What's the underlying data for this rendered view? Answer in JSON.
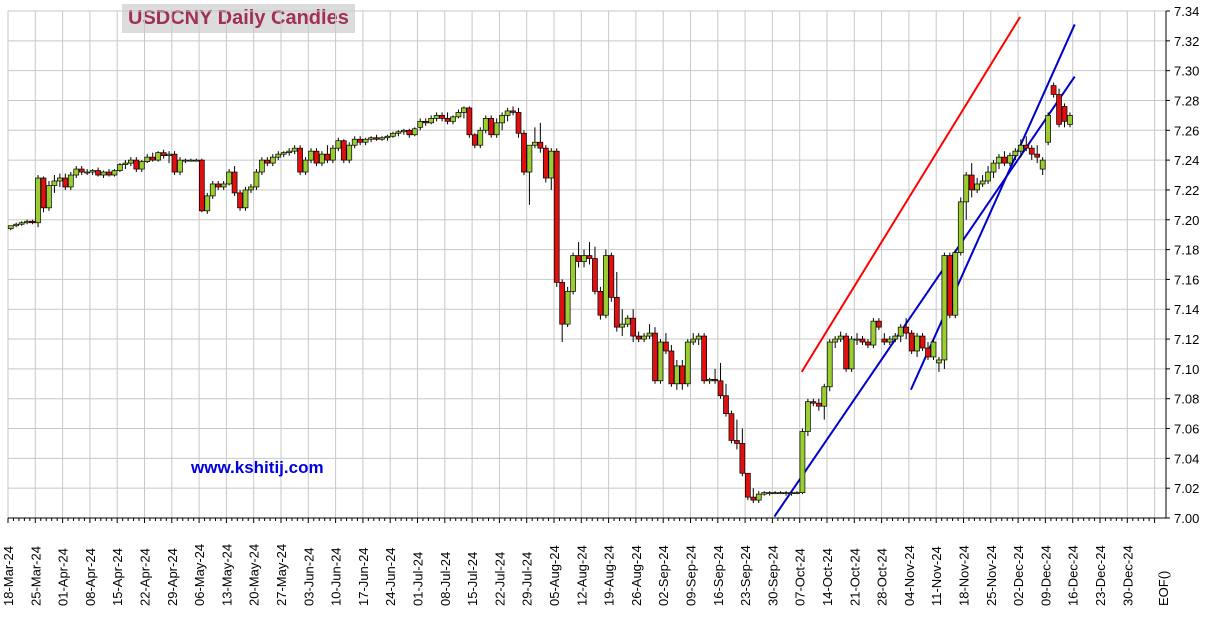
{
  "chart_data": {
    "type": "candlestick",
    "title": "USDCNY Daily Candles",
    "watermark": "www.kshitij.com",
    "ylim": [
      7.0,
      7.34
    ],
    "y_ticks": [
      "7.00",
      "7.02",
      "7.04",
      "7.06",
      "7.08",
      "7.10",
      "7.12",
      "7.14",
      "7.16",
      "7.18",
      "7.20",
      "7.22",
      "7.24",
      "7.26",
      "7.28",
      "7.30",
      "7.32",
      "7.34"
    ],
    "x_ticks": [
      "18-Mar-24",
      "25-Mar-24",
      "01-Apr-24",
      "08-Apr-24",
      "15-Apr-24",
      "22-Apr-24",
      "29-Apr-24",
      "06-May-24",
      "13-May-24",
      "20-May-24",
      "27-May-24",
      "03-Jun-24",
      "10-Jun-24",
      "17-Jun-24",
      "24-Jun-24",
      "01-Jul-24",
      "08-Jul-24",
      "15-Jul-24",
      "22-Jul-24",
      "29-Jul-24",
      "05-Aug-24",
      "12-Aug-24",
      "19-Aug-24",
      "26-Aug-24",
      "02-Sep-24",
      "09-Sep-24",
      "16-Sep-24",
      "23-Sep-24",
      "30-Sep-24",
      "07-Oct-24",
      "14-Oct-24",
      "21-Oct-24",
      "28-Oct-24",
      "04-Nov-24",
      "11-Nov-24",
      "18-Nov-24",
      "25-Nov-24",
      "02-Dec-24",
      "09-Dec-24",
      "16-Dec-24",
      "23-Dec-24",
      "30-Dec-24",
      "EOF()"
    ],
    "grid": true,
    "up_color": "#9acd32",
    "down_color": "#e01010",
    "weeks": [
      [
        [
          7.194,
          7.196,
          7.193,
          7.196
        ],
        [
          7.196,
          7.198,
          7.195,
          7.197
        ],
        [
          7.197,
          7.199,
          7.196,
          7.198
        ],
        [
          7.198,
          7.2,
          7.197,
          7.199
        ],
        [
          7.199,
          7.2,
          7.197,
          7.198
        ]
      ],
      [
        [
          7.198,
          7.23,
          7.195,
          7.228
        ],
        [
          7.228,
          7.229,
          7.205,
          7.208
        ],
        [
          7.208,
          7.226,
          7.206,
          7.223
        ],
        [
          7.223,
          7.23,
          7.218,
          7.226
        ],
        [
          7.226,
          7.231,
          7.222,
          7.228
        ]
      ],
      [
        [
          7.228,
          7.231,
          7.22,
          7.222
        ],
        [
          7.222,
          7.232,
          7.22,
          7.23
        ],
        [
          7.23,
          7.236,
          7.228,
          7.234
        ],
        [
          7.234,
          7.236,
          7.23,
          7.232
        ],
        [
          7.232,
          7.234,
          7.23,
          7.232
        ]
      ],
      [
        [
          7.232,
          7.234,
          7.23,
          7.233
        ],
        [
          7.233,
          7.235,
          7.229,
          7.23
        ],
        [
          7.23,
          7.233,
          7.228,
          7.232
        ],
        [
          7.232,
          7.234,
          7.229,
          7.23
        ],
        [
          7.23,
          7.234,
          7.229,
          7.233
        ]
      ],
      [
        [
          7.233,
          7.238,
          7.232,
          7.237
        ],
        [
          7.237,
          7.24,
          7.234,
          7.238
        ],
        [
          7.238,
          7.242,
          7.236,
          7.24
        ],
        [
          7.24,
          7.242,
          7.232,
          7.234
        ],
        [
          7.234,
          7.24,
          7.232,
          7.239
        ]
      ],
      [
        [
          7.239,
          7.244,
          7.238,
          7.242
        ],
        [
          7.242,
          7.245,
          7.239,
          7.24
        ],
        [
          7.24,
          7.246,
          7.239,
          7.245
        ],
        [
          7.245,
          7.247,
          7.241,
          7.243
        ],
        [
          7.243,
          7.246,
          7.238,
          7.244
        ]
      ],
      [
        [
          7.244,
          7.246,
          7.23,
          7.232
        ],
        [
          7.232,
          7.242,
          7.23,
          7.24
        ],
        [
          7.24,
          7.241,
          7.238,
          7.24
        ],
        [
          7.24,
          7.241,
          7.239,
          7.24
        ],
        [
          7.24,
          7.241,
          7.239,
          7.24
        ]
      ],
      [
        [
          7.24,
          7.241,
          7.205,
          7.206
        ],
        [
          7.206,
          7.218,
          7.204,
          7.216
        ],
        [
          7.216,
          7.226,
          7.214,
          7.224
        ],
        [
          7.224,
          7.226,
          7.22,
          7.222
        ],
        [
          7.222,
          7.226,
          7.22,
          7.224
        ]
      ],
      [
        [
          7.224,
          7.234,
          7.223,
          7.232
        ],
        [
          7.232,
          7.236,
          7.216,
          7.218
        ],
        [
          7.218,
          7.22,
          7.206,
          7.208
        ],
        [
          7.208,
          7.222,
          7.206,
          7.22
        ],
        [
          7.22,
          7.224,
          7.218,
          7.222
        ]
      ],
      [
        [
          7.222,
          7.234,
          7.22,
          7.232
        ],
        [
          7.232,
          7.242,
          7.23,
          7.24
        ],
        [
          7.24,
          7.242,
          7.236,
          7.238
        ],
        [
          7.238,
          7.244,
          7.236,
          7.242
        ],
        [
          7.242,
          7.246,
          7.24,
          7.244
        ]
      ],
      [
        [
          7.244,
          7.246,
          7.242,
          7.245
        ],
        [
          7.245,
          7.248,
          7.243,
          7.246
        ],
        [
          7.246,
          7.25,
          7.244,
          7.248
        ],
        [
          7.248,
          7.25,
          7.23,
          7.232
        ],
        [
          7.232,
          7.242,
          7.23,
          7.24
        ]
      ],
      [
        [
          7.24,
          7.248,
          7.238,
          7.246
        ],
        [
          7.246,
          7.248,
          7.236,
          7.238
        ],
        [
          7.238,
          7.246,
          7.236,
          7.244
        ],
        [
          7.244,
          7.25,
          7.238,
          7.24
        ],
        [
          7.24,
          7.25,
          7.238,
          7.248
        ]
      ],
      [
        [
          7.248,
          7.255,
          7.246,
          7.253
        ],
        [
          7.253,
          7.254,
          7.238,
          7.24
        ],
        [
          7.24,
          7.252,
          7.238,
          7.25
        ],
        [
          7.25,
          7.256,
          7.248,
          7.254
        ],
        [
          7.254,
          7.256,
          7.25,
          7.252
        ]
      ],
      [
        [
          7.252,
          7.255,
          7.25,
          7.254
        ],
        [
          7.254,
          7.256,
          7.252,
          7.255
        ],
        [
          7.255,
          7.257,
          7.253,
          7.254
        ],
        [
          7.254,
          7.256,
          7.253,
          7.255
        ],
        [
          7.255,
          7.257,
          7.253,
          7.256
        ]
      ],
      [
        [
          7.256,
          7.259,
          7.255,
          7.258
        ],
        [
          7.258,
          7.26,
          7.256,
          7.259
        ],
        [
          7.259,
          7.261,
          7.257,
          7.26
        ],
        [
          7.26,
          7.261,
          7.255,
          7.257
        ],
        [
          7.257,
          7.262,
          7.256,
          7.261
        ]
      ],
      [
        [
          7.262,
          7.268,
          7.26,
          7.266
        ],
        [
          7.266,
          7.268,
          7.263,
          7.265
        ],
        [
          7.265,
          7.27,
          7.264,
          7.268
        ],
        [
          7.268,
          7.272,
          7.266,
          7.27
        ],
        [
          7.27,
          7.272,
          7.266,
          7.268
        ]
      ],
      [
        [
          7.268,
          7.272,
          7.264,
          7.266
        ],
        [
          7.266,
          7.27,
          7.264,
          7.269
        ],
        [
          7.269,
          7.274,
          7.268,
          7.272
        ],
        [
          7.272,
          7.276,
          7.268,
          7.275
        ],
        [
          7.275,
          7.276,
          7.255,
          7.257
        ]
      ],
      [
        [
          7.257,
          7.258,
          7.248,
          7.25
        ],
        [
          7.25,
          7.262,
          7.248,
          7.26
        ],
        [
          7.26,
          7.27,
          7.258,
          7.268
        ],
        [
          7.268,
          7.27,
          7.255,
          7.257
        ],
        [
          7.257,
          7.268,
          7.255,
          7.265
        ]
      ],
      [
        [
          7.265,
          7.272,
          7.26,
          7.27
        ],
        [
          7.27,
          7.275,
          7.266,
          7.273
        ],
        [
          7.273,
          7.276,
          7.27,
          7.272
        ],
        [
          7.272,
          7.275,
          7.255,
          7.258
        ],
        [
          7.258,
          7.26,
          7.23,
          7.232
        ]
      ],
      [
        [
          7.232,
          7.24,
          7.21,
          7.25
        ],
        [
          7.25,
          7.262,
          7.248,
          7.252
        ],
        [
          7.252,
          7.265,
          7.245,
          7.248
        ],
        [
          7.248,
          7.25,
          7.225,
          7.228
        ],
        [
          7.228,
          7.248,
          7.22,
          7.246
        ]
      ],
      [
        [
          7.246,
          7.248,
          7.155,
          7.158
        ],
        [
          7.158,
          7.16,
          7.118,
          7.13
        ],
        [
          7.13,
          7.155,
          7.128,
          7.152
        ],
        [
          7.152,
          7.178,
          7.15,
          7.176
        ],
        [
          7.176,
          7.185,
          7.168,
          7.172
        ]
      ],
      [
        [
          7.172,
          7.18,
          7.168,
          7.176
        ],
        [
          7.176,
          7.185,
          7.17,
          7.174
        ],
        [
          7.174,
          7.182,
          7.15,
          7.152
        ],
        [
          7.152,
          7.155,
          7.133,
          7.136
        ],
        [
          7.136,
          7.18,
          7.134,
          7.176
        ]
      ],
      [
        [
          7.176,
          7.178,
          7.145,
          7.148
        ],
        [
          7.148,
          7.165,
          7.125,
          7.128
        ],
        [
          7.128,
          7.14,
          7.122,
          7.13
        ],
        [
          7.13,
          7.136,
          7.128,
          7.134
        ],
        [
          7.134,
          7.14,
          7.118,
          7.122
        ]
      ],
      [
        [
          7.122,
          7.125,
          7.118,
          7.12
        ],
        [
          7.12,
          7.124,
          7.118,
          7.122
        ],
        [
          7.122,
          7.13,
          7.12,
          7.124
        ],
        [
          7.124,
          7.128,
          7.09,
          7.092
        ],
        [
          7.092,
          7.12,
          7.09,
          7.118
        ]
      ],
      [
        [
          7.118,
          7.124,
          7.11,
          7.112
        ],
        [
          7.112,
          7.116,
          7.088,
          7.09
        ],
        [
          7.09,
          7.106,
          7.086,
          7.102
        ],
        [
          7.102,
          7.106,
          7.086,
          7.09
        ],
        [
          7.09,
          7.12,
          7.088,
          7.118
        ]
      ],
      [
        [
          7.118,
          7.124,
          7.116,
          7.12
        ],
        [
          7.12,
          7.124,
          7.116,
          7.122
        ],
        [
          7.122,
          7.124,
          7.09,
          7.092
        ],
        [
          7.092,
          7.094,
          7.09,
          7.093
        ],
        [
          7.093,
          7.1,
          7.09,
          7.092
        ]
      ],
      [
        [
          7.092,
          7.104,
          7.08,
          7.082
        ],
        [
          7.082,
          7.09,
          7.068,
          7.07
        ],
        [
          7.07,
          7.072,
          7.05,
          7.052
        ],
        [
          7.052,
          7.066,
          7.046,
          7.05
        ],
        [
          7.05,
          7.06,
          7.028,
          7.03
        ]
      ],
      [
        [
          7.03,
          7.03,
          7.012,
          7.014
        ],
        [
          7.014,
          7.02,
          7.01,
          7.012
        ],
        [
          7.012,
          7.018,
          7.01,
          7.016
        ],
        [
          7.016,
          7.018,
          7.015,
          7.017
        ],
        [
          7.017,
          7.018,
          7.015,
          7.017
        ]
      ],
      [
        [
          7.017,
          7.018,
          7.016,
          7.017
        ],
        [
          7.017,
          7.018,
          7.016,
          7.017
        ],
        [
          7.017,
          7.018,
          7.015,
          7.017
        ],
        [
          7.017,
          7.018,
          7.015,
          7.017
        ],
        [
          7.017,
          7.018,
          7.016,
          7.017
        ]
      ],
      [
        [
          7.017,
          7.06,
          7.016,
          7.058
        ],
        [
          7.058,
          7.08,
          7.055,
          7.078
        ],
        [
          7.078,
          7.08,
          7.075,
          7.077
        ],
        [
          7.077,
          7.08,
          7.072,
          7.075
        ],
        [
          7.075,
          7.09,
          7.066,
          7.088
        ]
      ],
      [
        [
          7.088,
          7.12,
          7.085,
          7.118
        ],
        [
          7.118,
          7.122,
          7.114,
          7.12
        ],
        [
          7.12,
          7.125,
          7.118,
          7.122
        ],
        [
          7.122,
          7.124,
          7.098,
          7.1
        ],
        [
          7.1,
          7.122,
          7.098,
          7.12
        ]
      ],
      [
        [
          7.12,
          7.124,
          7.116,
          7.12
        ],
        [
          7.12,
          7.122,
          7.116,
          7.118
        ],
        [
          7.118,
          7.12,
          7.114,
          7.116
        ],
        [
          7.116,
          7.134,
          7.114,
          7.132
        ],
        [
          7.132,
          7.134,
          7.126,
          7.128
        ]
      ],
      [
        [
          7.12,
          7.124,
          7.116,
          7.118
        ],
        [
          7.118,
          7.122,
          7.116,
          7.12
        ],
        [
          7.12,
          7.124,
          7.118,
          7.122
        ],
        [
          7.122,
          7.13,
          7.118,
          7.128
        ],
        [
          7.128,
          7.134,
          7.12,
          7.124
        ]
      ],
      [
        [
          7.124,
          7.126,
          7.11,
          7.112
        ],
        [
          7.112,
          7.124,
          7.108,
          7.122
        ],
        [
          7.122,
          7.124,
          7.112,
          7.114
        ],
        [
          7.114,
          7.118,
          7.106,
          7.108
        ],
        [
          7.108,
          7.12,
          7.106,
          7.118
        ]
      ],
      [
        [
          7.104,
          7.108,
          7.098,
          7.106
        ],
        [
          7.106,
          7.178,
          7.1,
          7.176
        ],
        [
          7.176,
          7.178,
          7.134,
          7.136
        ],
        [
          7.136,
          7.18,
          7.134,
          7.178
        ],
        [
          7.178,
          7.215,
          7.176,
          7.212
        ]
      ],
      [
        [
          7.212,
          7.232,
          7.2,
          7.23
        ],
        [
          7.23,
          7.238,
          7.215,
          7.22
        ],
        [
          7.22,
          7.228,
          7.218,
          7.224
        ],
        [
          7.224,
          7.23,
          7.222,
          7.226
        ],
        [
          7.226,
          7.236,
          7.224,
          7.232
        ]
      ],
      [
        [
          7.232,
          7.24,
          7.228,
          7.238
        ],
        [
          7.238,
          7.244,
          7.234,
          7.242
        ],
        [
          7.242,
          7.246,
          7.236,
          7.238
        ],
        [
          7.238,
          7.245,
          7.236,
          7.243
        ],
        [
          7.243,
          7.248,
          7.24,
          7.246
        ]
      ],
      [
        [
          7.246,
          7.254,
          7.242,
          7.25
        ],
        [
          7.25,
          7.256,
          7.246,
          7.248
        ],
        [
          7.248,
          7.25,
          7.24,
          7.244
        ],
        [
          7.244,
          7.25,
          7.238,
          7.242
        ],
        [
          7.234,
          7.242,
          7.23,
          7.24
        ]
      ],
      [
        [
          7.252,
          7.272,
          7.25,
          7.27
        ],
        [
          7.29,
          7.292,
          7.282,
          7.284
        ],
        [
          7.284,
          7.288,
          7.262,
          7.264
        ],
        [
          7.276,
          7.278,
          7.262,
          7.266
        ],
        [
          7.264,
          7.272,
          7.262,
          7.27
        ]
      ]
    ],
    "trendlines": [
      {
        "color": "#ff0000",
        "from": [
          "07-Oct-24",
          7.098
        ],
        "to": [
          "02-Dec-24",
          7.336
        ]
      },
      {
        "color": "#0000cc",
        "from": [
          "30-Sep-24",
          7.001
        ],
        "to": [
          "16-Dec-24",
          7.296
        ]
      },
      {
        "color": "#0000cc",
        "from": [
          "04-Nov-24",
          7.086
        ],
        "to": [
          "16-Dec-24",
          7.331
        ]
      }
    ]
  }
}
